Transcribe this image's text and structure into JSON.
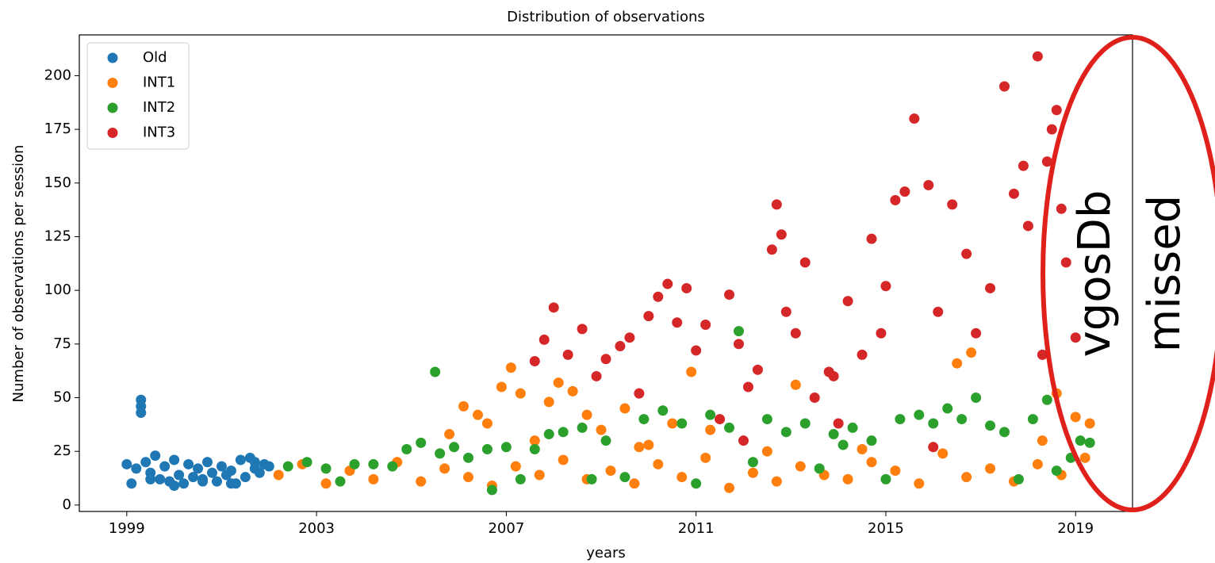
{
  "chart_data": {
    "type": "scatter",
    "title": "Distribution of observations",
    "xlabel": "years",
    "ylabel": "Number of observations per session",
    "xlim": [
      1998,
      2020.2
    ],
    "ylim": [
      -3,
      219
    ],
    "xticks": [
      1999,
      2003,
      2007,
      2011,
      2015,
      2019
    ],
    "yticks": [
      0,
      25,
      50,
      75,
      100,
      125,
      150,
      175,
      200
    ],
    "legend": "upper left",
    "annotations": [
      "vgosDb",
      "missed"
    ],
    "series": [
      {
        "name": "Old",
        "color": "#1f77b4",
        "x": [
          1999.0,
          1999.1,
          1999.2,
          1999.3,
          1999.3,
          1999.3,
          1999.4,
          1999.5,
          1999.6,
          1999.7,
          1999.8,
          1999.9,
          2000.0,
          2000.1,
          2000.2,
          2000.3,
          2000.4,
          2000.5,
          2000.6,
          2000.7,
          2000.8,
          2000.9,
          2001.0,
          2001.1,
          2001.2,
          2001.3,
          2001.4,
          2001.5,
          2001.6,
          2001.7,
          2001.8,
          2001.9,
          2002.0,
          1999.5,
          2000.0,
          2000.6,
          2001.2,
          2001.7
        ],
        "values": [
          19,
          10,
          17,
          49,
          46,
          43,
          20,
          15,
          23,
          12,
          18,
          11,
          21,
          14,
          10,
          19,
          13,
          17,
          12,
          20,
          15,
          11,
          18,
          14,
          16,
          10,
          21,
          13,
          22,
          17,
          15,
          19,
          18,
          12,
          9,
          11,
          10,
          20
        ]
      },
      {
        "name": "INT1",
        "color": "#ff7f0e",
        "x": [
          2002.2,
          2002.7,
          2003.2,
          2003.7,
          2004.2,
          2004.7,
          2005.2,
          2005.7,
          2006.2,
          2006.7,
          2007.2,
          2007.7,
          2008.2,
          2008.7,
          2009.2,
          2009.7,
          2010.2,
          2010.7,
          2011.2,
          2011.7,
          2012.2,
          2012.7,
          2013.2,
          2013.7,
          2014.2,
          2014.7,
          2015.2,
          2015.7,
          2016.2,
          2016.7,
          2017.2,
          2017.7,
          2018.2,
          2018.7,
          2019.2,
          2005.8,
          2006.1,
          2006.4,
          2006.6,
          2006.9,
          2007.1,
          2007.3,
          2007.6,
          2007.9,
          2008.1,
          2008.4,
          2008.7,
          2009.0,
          2009.5,
          2010.0,
          2010.5,
          2010.9,
          2011.3,
          2013.1,
          2016.5,
          2016.8,
          2018.6,
          2019.0,
          2019.3,
          2018.3,
          2014.5,
          2012.5,
          2009.8
        ],
        "values": [
          14,
          19,
          10,
          16,
          12,
          20,
          11,
          17,
          13,
          9,
          18,
          14,
          21,
          12,
          16,
          10,
          19,
          13,
          22,
          8,
          15,
          11,
          18,
          14,
          12,
          20,
          16,
          10,
          24,
          13,
          17,
          11,
          19,
          14,
          22,
          33,
          46,
          42,
          38,
          55,
          64,
          52,
          30,
          48,
          57,
          53,
          42,
          35,
          45,
          28,
          38,
          62,
          35,
          56,
          66,
          71,
          52,
          41,
          38,
          30,
          26,
          25,
          27
        ]
      },
      {
        "name": "INT2",
        "color": "#2ca02c",
        "x": [
          2002.4,
          2002.8,
          2003.2,
          2003.5,
          2003.8,
          2004.2,
          2004.6,
          2004.9,
          2005.2,
          2005.5,
          2005.6,
          2005.9,
          2006.2,
          2006.6,
          2006.7,
          2007.0,
          2007.3,
          2007.6,
          2007.9,
          2008.2,
          2008.6,
          2008.8,
          2009.1,
          2009.5,
          2009.9,
          2010.3,
          2010.7,
          2011.0,
          2011.3,
          2011.7,
          2011.9,
          2012.2,
          2012.5,
          2012.9,
          2013.3,
          2013.6,
          2013.9,
          2014.3,
          2014.7,
          2015.0,
          2015.3,
          2015.7,
          2016.0,
          2016.3,
          2016.6,
          2016.9,
          2017.2,
          2017.5,
          2017.8,
          2018.1,
          2018.4,
          2018.6,
          2018.9,
          2019.1,
          2019.3,
          2014.1
        ],
        "values": [
          18,
          20,
          17,
          11,
          19,
          19,
          18,
          26,
          29,
          62,
          24,
          27,
          22,
          26,
          7,
          27,
          12,
          26,
          33,
          34,
          36,
          12,
          30,
          13,
          40,
          44,
          38,
          10,
          42,
          36,
          81,
          20,
          40,
          34,
          38,
          17,
          33,
          36,
          30,
          12,
          40,
          42,
          38,
          45,
          40,
          50,
          37,
          34,
          12,
          40,
          49,
          16,
          22,
          30,
          29,
          28
        ]
      },
      {
        "name": "INT3",
        "color": "#d62728",
        "x": [
          2007.6,
          2007.8,
          2008.0,
          2008.3,
          2008.6,
          2008.9,
          2009.1,
          2009.4,
          2009.6,
          2009.8,
          2010.0,
          2010.2,
          2010.4,
          2010.6,
          2010.8,
          2011.0,
          2011.2,
          2011.5,
          2011.7,
          2011.9,
          2012.1,
          2012.3,
          2012.6,
          2012.7,
          2012.8,
          2012.9,
          2013.1,
          2013.3,
          2013.5,
          2013.9,
          2014.2,
          2014.5,
          2014.7,
          2014.9,
          2015.0,
          2015.2,
          2015.4,
          2015.6,
          2015.9,
          2016.1,
          2016.4,
          2016.7,
          2016.9,
          2017.2,
          2017.5,
          2017.7,
          2017.9,
          2018.0,
          2018.2,
          2018.4,
          2018.5,
          2018.6,
          2018.7,
          2018.8,
          2019.0,
          2012.0,
          2014.0,
          2016.0,
          2018.3,
          2013.8
        ],
        "values": [
          67,
          77,
          92,
          70,
          82,
          60,
          68,
          74,
          78,
          52,
          88,
          97,
          103,
          85,
          101,
          72,
          84,
          40,
          98,
          75,
          55,
          63,
          119,
          140,
          126,
          90,
          80,
          113,
          50,
          60,
          95,
          70,
          124,
          80,
          102,
          142,
          146,
          180,
          149,
          90,
          140,
          117,
          80,
          101,
          195,
          145,
          158,
          130,
          209,
          160,
          175,
          184,
          138,
          113,
          78,
          30,
          38,
          27,
          70,
          62
        ]
      }
    ]
  }
}
